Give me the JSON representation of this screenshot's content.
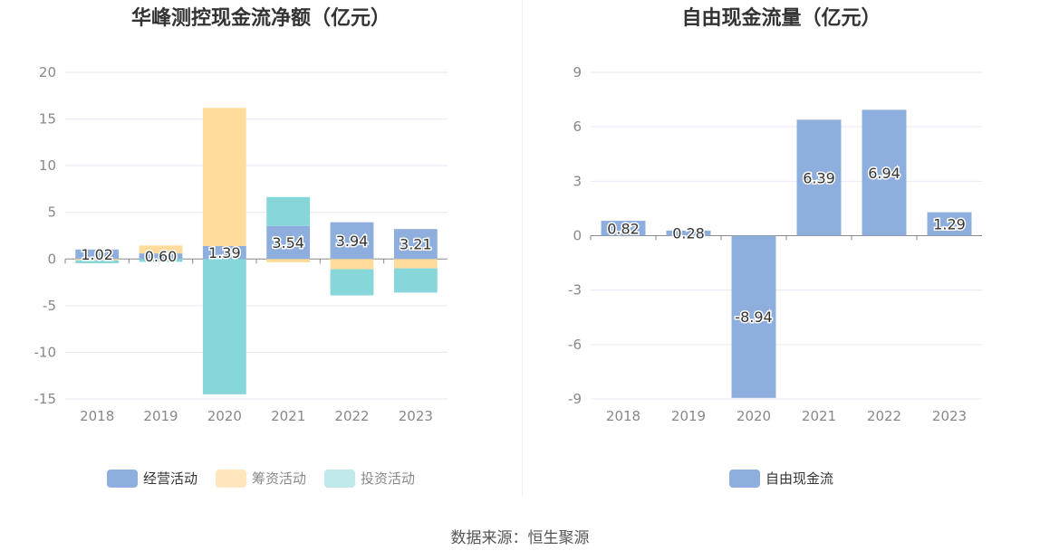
{
  "colors": {
    "operating": "#8eaedd",
    "financing": "#ffdb9c",
    "investing": "#86d6da",
    "free_cash_flow": "#8eaedd",
    "axis_text": "#888888",
    "grid": "#e6e9f2"
  },
  "source": "数据来源：恒生聚源",
  "chart_data": [
    {
      "type": "bar",
      "stacked": true,
      "title": "华峰测控现金流净额（亿元）",
      "categories": [
        "2018",
        "2019",
        "2020",
        "2021",
        "2022",
        "2023"
      ],
      "ylim": [
        -15,
        20
      ],
      "yticks": [
        "20",
        "15",
        "10",
        "5",
        "0",
        "-5",
        "-10",
        "-15"
      ],
      "legend_position": "bottom",
      "series": [
        {
          "name": "经营活动",
          "values": [
            1.02,
            0.6,
            1.39,
            3.54,
            3.94,
            3.21
          ],
          "labels": [
            "1.02",
            "0.60",
            "1.39",
            "3.54",
            "3.94",
            "3.21"
          ]
        },
        {
          "name": "筹资活动",
          "values": [
            -0.15,
            0.85,
            14.8,
            -0.35,
            -1.1,
            -1.0
          ]
        },
        {
          "name": "投资活动",
          "values": [
            -0.3,
            -0.3,
            -14.5,
            3.1,
            -2.8,
            -2.6
          ]
        }
      ]
    },
    {
      "type": "bar",
      "title": "自由现金流量（亿元）",
      "categories": [
        "2018",
        "2019",
        "2020",
        "2021",
        "2022",
        "2023"
      ],
      "ylim": [
        -9,
        9
      ],
      "yticks": [
        "9",
        "6",
        "3",
        "0",
        "-3",
        "-6",
        "-9"
      ],
      "legend_position": "bottom",
      "series": [
        {
          "name": "自由现金流",
          "values": [
            0.82,
            0.28,
            -8.94,
            6.39,
            6.94,
            1.29
          ],
          "labels": [
            "0.82",
            "0.28",
            "-8.94",
            "6.39",
            "6.94",
            "1.29"
          ]
        }
      ]
    }
  ]
}
